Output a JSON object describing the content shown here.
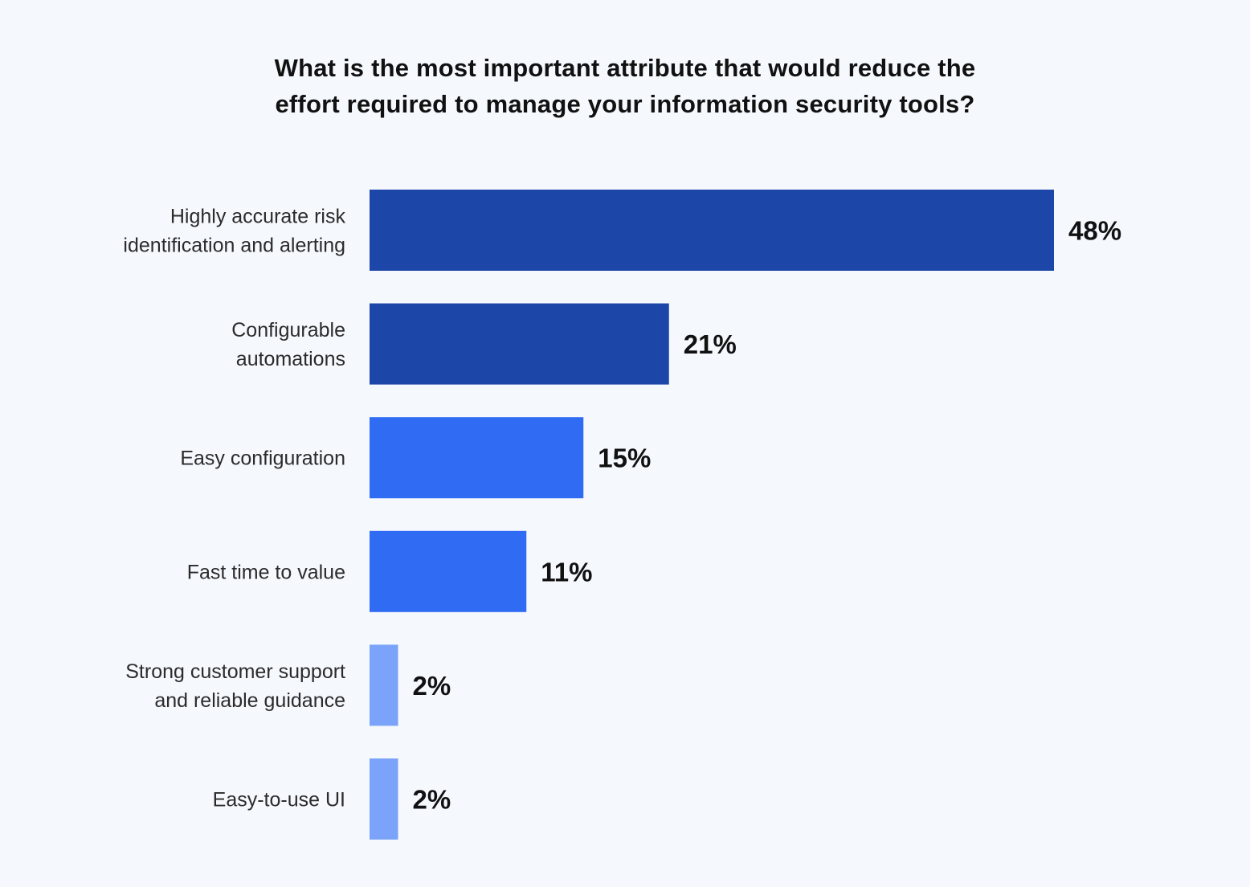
{
  "chart_data": {
    "type": "bar",
    "orientation": "horizontal",
    "title_lines": [
      "What is the most important attribute that would reduce the",
      "effort required to manage your information security tools?"
    ],
    "categories": [
      [
        "Highly accurate risk",
        "identification and alerting"
      ],
      [
        "Configurable",
        "automations"
      ],
      [
        "Easy configuration"
      ],
      [
        "Fast time to value"
      ],
      [
        "Strong customer support",
        "and reliable guidance"
      ],
      [
        "Easy-to-use UI"
      ]
    ],
    "values": [
      48,
      21,
      15,
      11,
      2,
      2
    ],
    "value_labels": [
      "48%",
      "21%",
      "15%",
      "11%",
      "2%",
      "2%"
    ],
    "bar_colors": [
      "#1c46a8",
      "#1c46a8",
      "#2f6cf3",
      "#2f6cf3",
      "#7aa3f9",
      "#7aa3f9"
    ],
    "background_color": "#f5f8fd",
    "grid": false,
    "legend": "none"
  }
}
